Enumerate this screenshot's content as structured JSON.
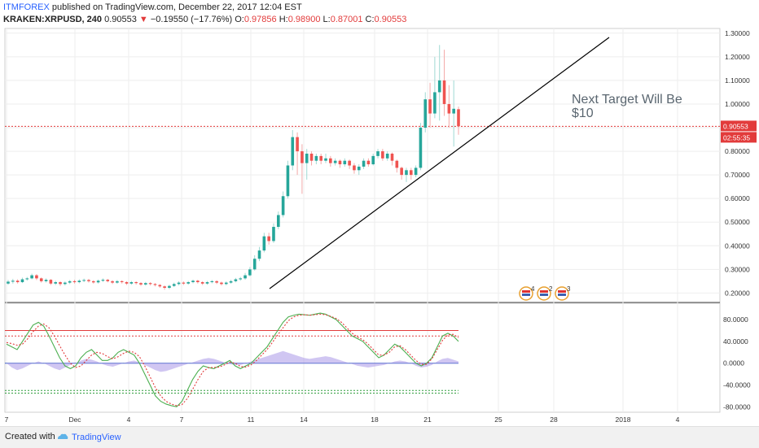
{
  "header": {
    "author": "ITMFOREX",
    "published": " published on TradingView.com, December 22, 2017 12:04 EST",
    "symbol": "KRAKEN:XRPUSD, 240",
    "last": "0.90553",
    "change": "−0.19550 (−17.76%)",
    "o_label": "O:",
    "o_val": "0.97856",
    "h_label": "H:",
    "h_val": "0.98900",
    "l_label": "L:",
    "l_val": "0.87001",
    "c_label": "C:",
    "c_val": "0.90553"
  },
  "footer": {
    "created": "Created with",
    "brand": "TradingView"
  },
  "colors": {
    "up": "#26a69a",
    "down": "#ef5350",
    "accent": "#e23b3b",
    "stoch": "#4caf50",
    "macd": "#b0a0ea"
  },
  "chart_data": {
    "type": "candlestick",
    "y_axis_ticks": [
      "1.30000",
      "1.20000",
      "1.10000",
      "1.00000",
      "0.90000",
      "0.80000",
      "0.70000",
      "0.60000",
      "0.50000",
      "0.40000",
      "0.30000",
      "0.20000"
    ],
    "ylim": [
      0.16,
      1.32
    ],
    "x_axis_ticks": [
      "7",
      "Dec",
      "4",
      "7",
      "11",
      "14",
      "18",
      "21",
      "25",
      "28",
      "2018",
      "4"
    ],
    "price_label": "0.90553",
    "timer_label": "02:55:35",
    "annotation": "Next Target Will Be $10",
    "events": [
      {
        "count": "4"
      },
      {
        "count": "2"
      },
      {
        "count": "3"
      }
    ],
    "trendline": {
      "from": [
        "Dec 11",
        0.21
      ],
      "to": [
        "Jan 2",
        1.27
      ]
    },
    "candles": [
      {
        "o": 0.24,
        "c": 0.248,
        "h": 0.255,
        "l": 0.235
      },
      {
        "o": 0.248,
        "c": 0.252,
        "h": 0.26,
        "l": 0.24
      },
      {
        "o": 0.252,
        "c": 0.246,
        "h": 0.258,
        "l": 0.24
      },
      {
        "o": 0.246,
        "c": 0.258,
        "h": 0.265,
        "l": 0.242
      },
      {
        "o": 0.258,
        "c": 0.262,
        "h": 0.268,
        "l": 0.252
      },
      {
        "o": 0.262,
        "c": 0.275,
        "h": 0.282,
        "l": 0.258
      },
      {
        "o": 0.275,
        "c": 0.262,
        "h": 0.28,
        "l": 0.255
      },
      {
        "o": 0.262,
        "c": 0.25,
        "h": 0.266,
        "l": 0.244
      },
      {
        "o": 0.25,
        "c": 0.256,
        "h": 0.262,
        "l": 0.244
      },
      {
        "o": 0.256,
        "c": 0.24,
        "h": 0.259,
        "l": 0.234
      },
      {
        "o": 0.24,
        "c": 0.246,
        "h": 0.252,
        "l": 0.234
      },
      {
        "o": 0.246,
        "c": 0.238,
        "h": 0.25,
        "l": 0.23
      },
      {
        "o": 0.238,
        "c": 0.244,
        "h": 0.249,
        "l": 0.232
      },
      {
        "o": 0.244,
        "c": 0.25,
        "h": 0.255,
        "l": 0.238
      },
      {
        "o": 0.25,
        "c": 0.246,
        "h": 0.256,
        "l": 0.24
      },
      {
        "o": 0.246,
        "c": 0.252,
        "h": 0.258,
        "l": 0.241
      },
      {
        "o": 0.252,
        "c": 0.255,
        "h": 0.261,
        "l": 0.246
      },
      {
        "o": 0.255,
        "c": 0.25,
        "h": 0.26,
        "l": 0.244
      },
      {
        "o": 0.25,
        "c": 0.245,
        "h": 0.254,
        "l": 0.24
      },
      {
        "o": 0.245,
        "c": 0.252,
        "h": 0.257,
        "l": 0.24
      },
      {
        "o": 0.252,
        "c": 0.256,
        "h": 0.262,
        "l": 0.247
      },
      {
        "o": 0.256,
        "c": 0.25,
        "h": 0.26,
        "l": 0.245
      },
      {
        "o": 0.25,
        "c": 0.244,
        "h": 0.254,
        "l": 0.238
      },
      {
        "o": 0.244,
        "c": 0.25,
        "h": 0.255,
        "l": 0.239
      },
      {
        "o": 0.25,
        "c": 0.246,
        "h": 0.254,
        "l": 0.24
      },
      {
        "o": 0.246,
        "c": 0.24,
        "h": 0.25,
        "l": 0.234
      },
      {
        "o": 0.24,
        "c": 0.246,
        "h": 0.251,
        "l": 0.235
      },
      {
        "o": 0.246,
        "c": 0.242,
        "h": 0.25,
        "l": 0.236
      },
      {
        "o": 0.242,
        "c": 0.236,
        "h": 0.246,
        "l": 0.23
      },
      {
        "o": 0.236,
        "c": 0.242,
        "h": 0.247,
        "l": 0.231
      },
      {
        "o": 0.242,
        "c": 0.238,
        "h": 0.246,
        "l": 0.232
      },
      {
        "o": 0.238,
        "c": 0.234,
        "h": 0.242,
        "l": 0.228
      },
      {
        "o": 0.234,
        "c": 0.228,
        "h": 0.238,
        "l": 0.222
      },
      {
        "o": 0.228,
        "c": 0.222,
        "h": 0.232,
        "l": 0.214
      },
      {
        "o": 0.222,
        "c": 0.23,
        "h": 0.235,
        "l": 0.216
      },
      {
        "o": 0.23,
        "c": 0.238,
        "h": 0.244,
        "l": 0.225
      },
      {
        "o": 0.238,
        "c": 0.244,
        "h": 0.25,
        "l": 0.232
      },
      {
        "o": 0.244,
        "c": 0.24,
        "h": 0.249,
        "l": 0.234
      },
      {
        "o": 0.24,
        "c": 0.246,
        "h": 0.251,
        "l": 0.235
      },
      {
        "o": 0.246,
        "c": 0.252,
        "h": 0.257,
        "l": 0.241
      },
      {
        "o": 0.252,
        "c": 0.246,
        "h": 0.256,
        "l": 0.24
      },
      {
        "o": 0.246,
        "c": 0.24,
        "h": 0.25,
        "l": 0.234
      },
      {
        "o": 0.24,
        "c": 0.246,
        "h": 0.251,
        "l": 0.235
      },
      {
        "o": 0.246,
        "c": 0.25,
        "h": 0.255,
        "l": 0.241
      },
      {
        "o": 0.25,
        "c": 0.244,
        "h": 0.254,
        "l": 0.238
      },
      {
        "o": 0.244,
        "c": 0.238,
        "h": 0.248,
        "l": 0.232
      },
      {
        "o": 0.238,
        "c": 0.244,
        "h": 0.249,
        "l": 0.233
      },
      {
        "o": 0.244,
        "c": 0.25,
        "h": 0.256,
        "l": 0.239
      },
      {
        "o": 0.25,
        "c": 0.258,
        "h": 0.264,
        "l": 0.245
      },
      {
        "o": 0.258,
        "c": 0.262,
        "h": 0.268,
        "l": 0.252
      },
      {
        "o": 0.262,
        "c": 0.275,
        "h": 0.285,
        "l": 0.256
      },
      {
        "o": 0.275,
        "c": 0.3,
        "h": 0.31,
        "l": 0.27
      },
      {
        "o": 0.3,
        "c": 0.345,
        "h": 0.36,
        "l": 0.295
      },
      {
        "o": 0.345,
        "c": 0.38,
        "h": 0.395,
        "l": 0.335
      },
      {
        "o": 0.38,
        "c": 0.44,
        "h": 0.455,
        "l": 0.372
      },
      {
        "o": 0.44,
        "c": 0.42,
        "h": 0.455,
        "l": 0.405
      },
      {
        "o": 0.42,
        "c": 0.48,
        "h": 0.495,
        "l": 0.412
      },
      {
        "o": 0.48,
        "c": 0.53,
        "h": 0.545,
        "l": 0.47
      },
      {
        "o": 0.53,
        "c": 0.61,
        "h": 0.63,
        "l": 0.52
      },
      {
        "o": 0.61,
        "c": 0.74,
        "h": 0.76,
        "l": 0.6
      },
      {
        "o": 0.74,
        "c": 0.86,
        "h": 0.89,
        "l": 0.72
      },
      {
        "o": 0.86,
        "c": 0.8,
        "h": 0.88,
        "l": 0.7
      },
      {
        "o": 0.8,
        "c": 0.75,
        "h": 0.83,
        "l": 0.62
      },
      {
        "o": 0.75,
        "c": 0.79,
        "h": 0.81,
        "l": 0.68
      },
      {
        "o": 0.79,
        "c": 0.76,
        "h": 0.8,
        "l": 0.74
      },
      {
        "o": 0.76,
        "c": 0.78,
        "h": 0.79,
        "l": 0.745
      },
      {
        "o": 0.78,
        "c": 0.76,
        "h": 0.79,
        "l": 0.745
      },
      {
        "o": 0.76,
        "c": 0.77,
        "h": 0.79,
        "l": 0.75
      },
      {
        "o": 0.77,
        "c": 0.75,
        "h": 0.78,
        "l": 0.735
      },
      {
        "o": 0.75,
        "c": 0.76,
        "h": 0.77,
        "l": 0.74
      },
      {
        "o": 0.76,
        "c": 0.745,
        "h": 0.765,
        "l": 0.73
      },
      {
        "o": 0.745,
        "c": 0.76,
        "h": 0.77,
        "l": 0.735
      },
      {
        "o": 0.76,
        "c": 0.74,
        "h": 0.765,
        "l": 0.725
      },
      {
        "o": 0.74,
        "c": 0.72,
        "h": 0.75,
        "l": 0.705
      },
      {
        "o": 0.72,
        "c": 0.735,
        "h": 0.745,
        "l": 0.7
      },
      {
        "o": 0.735,
        "c": 0.76,
        "h": 0.77,
        "l": 0.725
      },
      {
        "o": 0.76,
        "c": 0.745,
        "h": 0.77,
        "l": 0.735
      },
      {
        "o": 0.745,
        "c": 0.78,
        "h": 0.79,
        "l": 0.74
      },
      {
        "o": 0.78,
        "c": 0.8,
        "h": 0.81,
        "l": 0.77
      },
      {
        "o": 0.8,
        "c": 0.77,
        "h": 0.81,
        "l": 0.76
      },
      {
        "o": 0.77,
        "c": 0.79,
        "h": 0.8,
        "l": 0.76
      },
      {
        "o": 0.79,
        "c": 0.76,
        "h": 0.795,
        "l": 0.74
      },
      {
        "o": 0.76,
        "c": 0.73,
        "h": 0.765,
        "l": 0.71
      },
      {
        "o": 0.73,
        "c": 0.7,
        "h": 0.735,
        "l": 0.68
      },
      {
        "o": 0.7,
        "c": 0.72,
        "h": 0.73,
        "l": 0.67
      },
      {
        "o": 0.72,
        "c": 0.7,
        "h": 0.73,
        "l": 0.68
      },
      {
        "o": 0.7,
        "c": 0.73,
        "h": 0.74,
        "l": 0.69
      },
      {
        "o": 0.73,
        "c": 0.9,
        "h": 0.92,
        "l": 0.72
      },
      {
        "o": 0.9,
        "c": 1.02,
        "h": 1.05,
        "l": 0.88
      },
      {
        "o": 1.02,
        "c": 0.96,
        "h": 1.09,
        "l": 0.9
      },
      {
        "o": 0.96,
        "c": 1.05,
        "h": 1.2,
        "l": 0.94
      },
      {
        "o": 1.05,
        "c": 1.1,
        "h": 1.25,
        "l": 0.93
      },
      {
        "o": 1.1,
        "c": 1.0,
        "h": 1.23,
        "l": 0.95
      },
      {
        "o": 1.0,
        "c": 0.96,
        "h": 1.08,
        "l": 0.9
      },
      {
        "o": 0.96,
        "c": 0.98,
        "h": 1.1,
        "l": 0.82
      },
      {
        "o": 0.978,
        "c": 0.906,
        "h": 0.989,
        "l": 0.87
      }
    ],
    "oscillator": {
      "ylim": [
        -90,
        110
      ],
      "y_axis_ticks": [
        "80.0000",
        "40.0000",
        "0.0000",
        "-40.0000",
        "-80.0000"
      ],
      "bands": [
        60,
        50,
        -50,
        -55
      ],
      "stoch_k": [
        35,
        30,
        25,
        40,
        55,
        70,
        75,
        68,
        50,
        30,
        10,
        -5,
        -10,
        -5,
        10,
        20,
        25,
        15,
        5,
        5,
        10,
        20,
        25,
        20,
        15,
        0,
        -20,
        -40,
        -60,
        -70,
        -75,
        -78,
        -80,
        -70,
        -50,
        -30,
        -15,
        -5,
        -8,
        -10,
        -5,
        0,
        5,
        -5,
        -10,
        -5,
        0,
        10,
        20,
        30,
        45,
        60,
        75,
        85,
        88,
        90,
        89,
        88,
        90,
        92,
        90,
        85,
        80,
        70,
        60,
        50,
        45,
        40,
        30,
        20,
        10,
        15,
        25,
        35,
        30,
        20,
        10,
        0,
        -5,
        0,
        10,
        30,
        50,
        55,
        50,
        40
      ],
      "stoch_d": [
        38,
        36,
        33,
        35,
        45,
        58,
        68,
        72,
        65,
        50,
        32,
        15,
        0,
        -8,
        -5,
        5,
        15,
        20,
        18,
        12,
        8,
        12,
        18,
        22,
        20,
        12,
        -5,
        -25,
        -45,
        -60,
        -70,
        -75,
        -78,
        -76,
        -65,
        -48,
        -30,
        -15,
        -8,
        -8,
        -7,
        -3,
        2,
        0,
        -6,
        -7,
        -3,
        5,
        15,
        25,
        38,
        52,
        65,
        78,
        85,
        88,
        89,
        88,
        89,
        90,
        89,
        86,
        82,
        75,
        65,
        55,
        48,
        43,
        35,
        25,
        15,
        15,
        20,
        30,
        32,
        25,
        15,
        5,
        -2,
        -2,
        8,
        25,
        42,
        52,
        53,
        47
      ],
      "macd": [
        0,
        -5,
        -8,
        -6,
        -3,
        0,
        2,
        0,
        -3,
        -6,
        -8,
        -5,
        -2,
        0,
        3,
        5,
        4,
        2,
        -1,
        -3,
        -4,
        -2,
        0,
        2,
        3,
        1,
        -2,
        -5,
        -8,
        -10,
        -9,
        -7,
        -5,
        -3,
        -1,
        1,
        3,
        5,
        6,
        5,
        3,
        1,
        -1,
        -2,
        -2,
        0,
        2,
        4,
        6,
        8,
        10,
        12,
        14,
        12,
        10,
        8,
        6,
        5,
        6,
        7,
        8,
        7,
        5,
        3,
        1,
        -1,
        -3,
        -4,
        -5,
        -4,
        -3,
        -2,
        0,
        2,
        3,
        2,
        0,
        -3,
        -5,
        -4,
        -2,
        2,
        5,
        6,
        4,
        2
      ]
    }
  }
}
